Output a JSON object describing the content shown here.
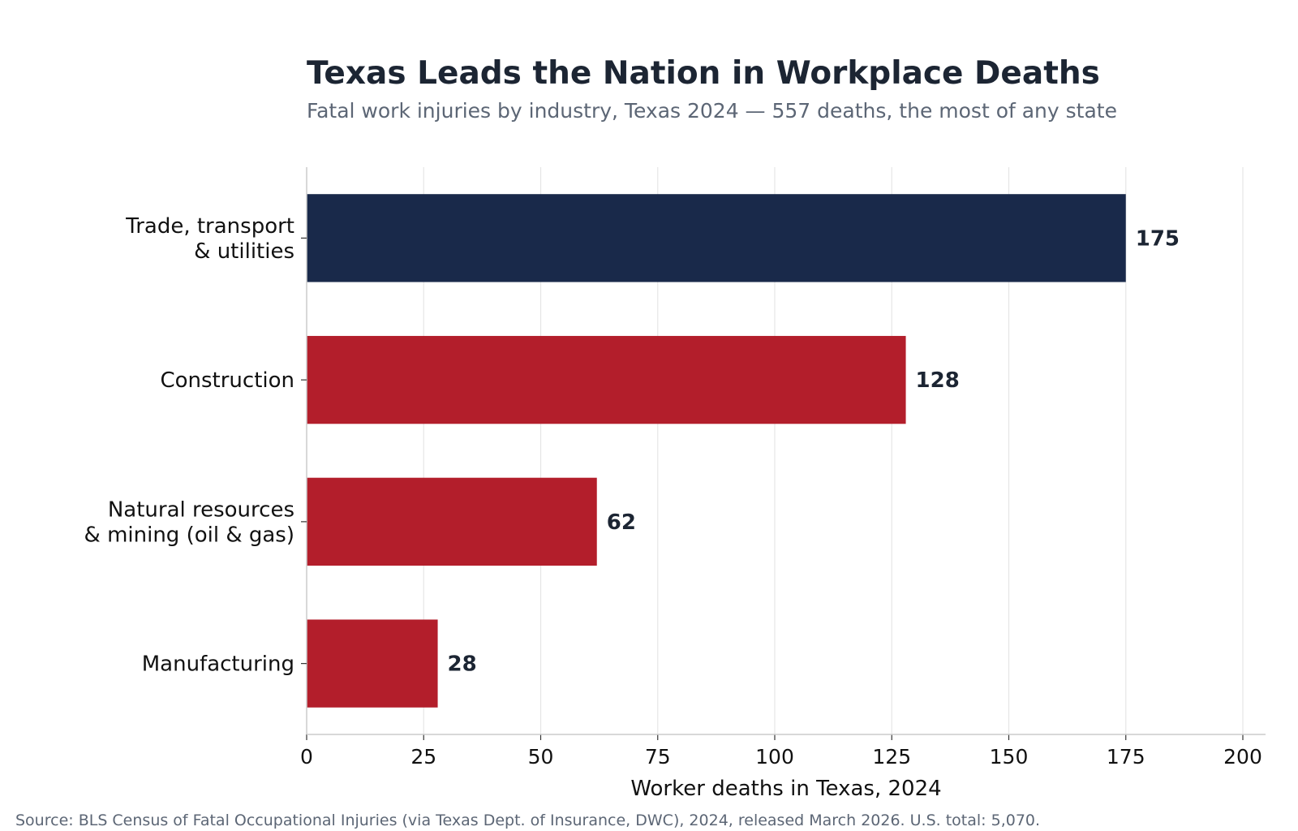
{
  "chart_data": {
    "type": "bar",
    "orientation": "horizontal",
    "title": "Texas Leads the Nation in Workplace Deaths",
    "subtitle": "Fatal work injuries by industry, Texas 2024 — 557 deaths, the most of any state",
    "xlabel": "Worker deaths in Texas, 2024",
    "ylabel": "",
    "xlim": [
      0,
      200
    ],
    "xticks": [
      0,
      25,
      50,
      75,
      100,
      125,
      150,
      175,
      200
    ],
    "grid": "vertical",
    "categories": [
      [
        "Trade, transport",
        "& utilities"
      ],
      [
        "Construction"
      ],
      [
        "Natural resources",
        "& mining (oil & gas)"
      ],
      [
        "Manufacturing"
      ]
    ],
    "values": [
      175,
      128,
      62,
      28
    ],
    "highlight_index": 0,
    "source": "Source: BLS Census of Fatal Occupational Injuries (via Texas Dept. of Insurance, DWC), 2024, released March 2026. U.S. total: 5,070."
  },
  "colors": {
    "highlight": "#19294a",
    "bar": "#b31e2b",
    "title": "#1c2533",
    "subtitle": "#5c6675",
    "value_label": "#1c2533",
    "label": "#111111",
    "grid": "#e6e6e6",
    "axis": "#cccccc",
    "source": "#5c6675"
  }
}
